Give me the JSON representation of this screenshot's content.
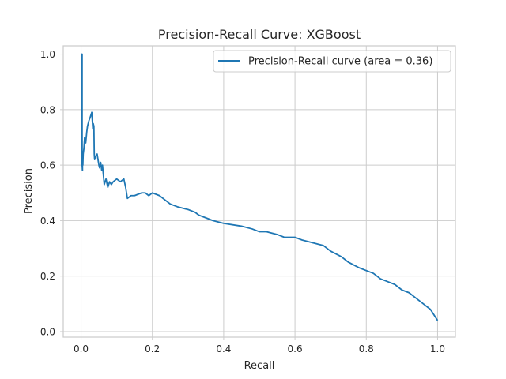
{
  "chart_data": {
    "type": "line",
    "title": "Precision-Recall Curve: XGBoost",
    "xlabel": "Recall",
    "ylabel": "Precision",
    "xlim": [
      -0.05,
      1.05
    ],
    "ylim": [
      -0.02,
      1.03
    ],
    "xticks": [
      0.0,
      0.2,
      0.4,
      0.6,
      0.8,
      1.0
    ],
    "xtick_labels": [
      "0.0",
      "0.2",
      "0.4",
      "0.6",
      "0.8",
      "1.0"
    ],
    "yticks": [
      0.0,
      0.2,
      0.4,
      0.6,
      0.8,
      1.0
    ],
    "ytick_labels": [
      "0.0",
      "0.2",
      "0.4",
      "0.6",
      "0.8",
      "1.0"
    ],
    "grid": true,
    "legend_position": "top-right",
    "series": [
      {
        "name": "Precision-Recall curve (area = 0.36)",
        "color": "#1f77b4",
        "x": [
          0.0,
          0.003,
          0.003,
          0.004,
          0.004,
          0.005,
          0.006,
          0.008,
          0.01,
          0.013,
          0.016,
          0.018,
          0.022,
          0.025,
          0.03,
          0.033,
          0.034,
          0.036,
          0.037,
          0.038,
          0.04,
          0.045,
          0.05,
          0.052,
          0.055,
          0.058,
          0.06,
          0.065,
          0.07,
          0.075,
          0.08,
          0.085,
          0.09,
          0.1,
          0.11,
          0.12,
          0.125,
          0.13,
          0.14,
          0.15,
          0.17,
          0.18,
          0.19,
          0.2,
          0.22,
          0.23,
          0.25,
          0.27,
          0.3,
          0.32,
          0.33,
          0.35,
          0.37,
          0.4,
          0.45,
          0.48,
          0.5,
          0.52,
          0.55,
          0.57,
          0.6,
          0.62,
          0.65,
          0.68,
          0.7,
          0.73,
          0.75,
          0.78,
          0.8,
          0.82,
          0.84,
          0.86,
          0.88,
          0.9,
          0.92,
          0.94,
          0.96,
          0.98,
          1.0
        ],
        "y": [
          1.0,
          1.0,
          0.6,
          0.58,
          0.62,
          0.6,
          0.64,
          0.66,
          0.7,
          0.68,
          0.72,
          0.74,
          0.76,
          0.77,
          0.79,
          0.73,
          0.75,
          0.74,
          0.64,
          0.62,
          0.63,
          0.64,
          0.6,
          0.59,
          0.61,
          0.58,
          0.6,
          0.53,
          0.55,
          0.52,
          0.54,
          0.53,
          0.54,
          0.55,
          0.54,
          0.55,
          0.52,
          0.48,
          0.49,
          0.49,
          0.5,
          0.5,
          0.49,
          0.5,
          0.49,
          0.48,
          0.46,
          0.45,
          0.44,
          0.43,
          0.42,
          0.41,
          0.4,
          0.39,
          0.38,
          0.37,
          0.36,
          0.36,
          0.35,
          0.34,
          0.34,
          0.33,
          0.32,
          0.31,
          0.29,
          0.27,
          0.25,
          0.23,
          0.22,
          0.21,
          0.19,
          0.18,
          0.17,
          0.15,
          0.14,
          0.12,
          0.1,
          0.08,
          0.04
        ]
      }
    ]
  }
}
